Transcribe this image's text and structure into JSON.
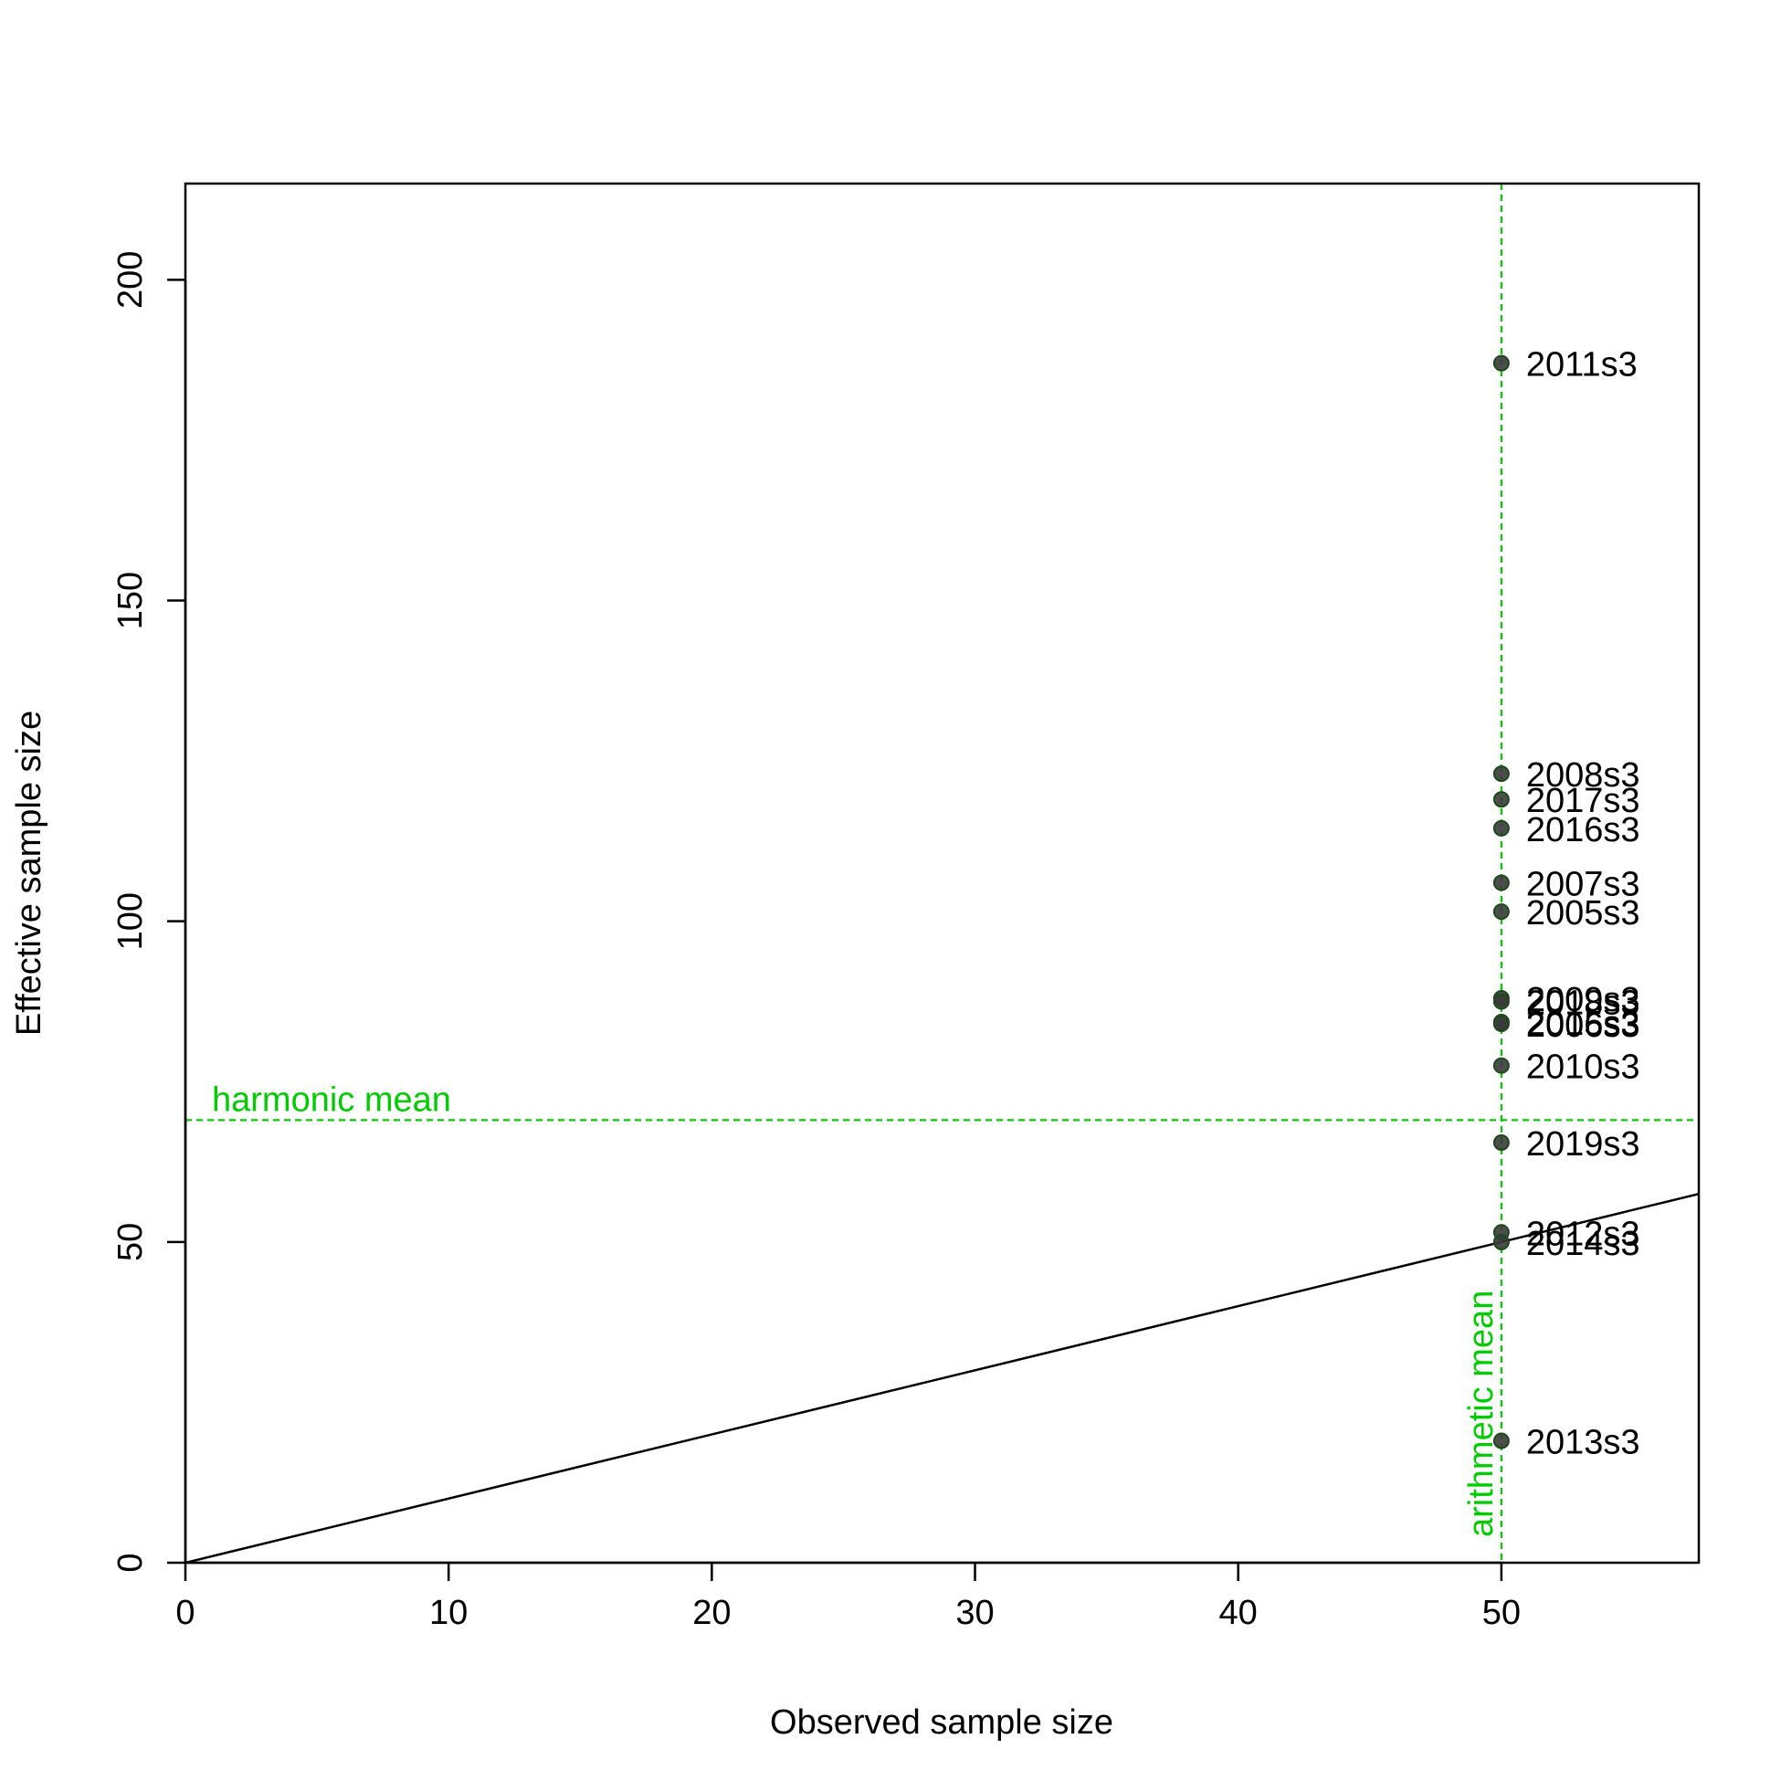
{
  "chart_data": {
    "type": "scatter",
    "title": "",
    "xlabel": "Observed sample size",
    "ylabel": "Effective sample size",
    "xlim": [
      0,
      57.5
    ],
    "ylim": [
      0,
      215
    ],
    "x_ticks": [
      0,
      10,
      20,
      30,
      40,
      50
    ],
    "y_ticks": [
      0,
      50,
      100,
      150,
      200
    ],
    "grid": false,
    "points": [
      {
        "label": "2011s3",
        "x": 50,
        "y": 187
      },
      {
        "label": "2008s3",
        "x": 50,
        "y": 123
      },
      {
        "label": "2017s3",
        "x": 50,
        "y": 119
      },
      {
        "label": "2016s3",
        "x": 50,
        "y": 114.5
      },
      {
        "label": "2007s3",
        "x": 50,
        "y": 106
      },
      {
        "label": "2005s3",
        "x": 50,
        "y": 101.5
      },
      {
        "label": "2009s3",
        "x": 50,
        "y": 88
      },
      {
        "label": "2018s3",
        "x": 50,
        "y": 87.5
      },
      {
        "label": "2015s3",
        "x": 50,
        "y": 84.3
      },
      {
        "label": "2006s3",
        "x": 50,
        "y": 84
      },
      {
        "label": "2010s3",
        "x": 50,
        "y": 77.5
      },
      {
        "label": "2019s3",
        "x": 50,
        "y": 65.5
      },
      {
        "label": "2012s3",
        "x": 50,
        "y": 51.5
      },
      {
        "label": "2014s3",
        "x": 50,
        "y": 50
      },
      {
        "label": "2013s3",
        "x": 50,
        "y": 19
      }
    ],
    "reference_lines": {
      "identity": {
        "slope": 1,
        "intercept": 0,
        "color": "#000000"
      },
      "harmonic_mean": {
        "label": "harmonic mean",
        "y": 69,
        "color": "#00cc00"
      },
      "arithmetic_mean": {
        "label": "arithmetic mean",
        "x": 50,
        "color": "#00cc00"
      }
    },
    "point_color": "#3a3a3a",
    "point_edge_color": "#1a4a1a"
  }
}
